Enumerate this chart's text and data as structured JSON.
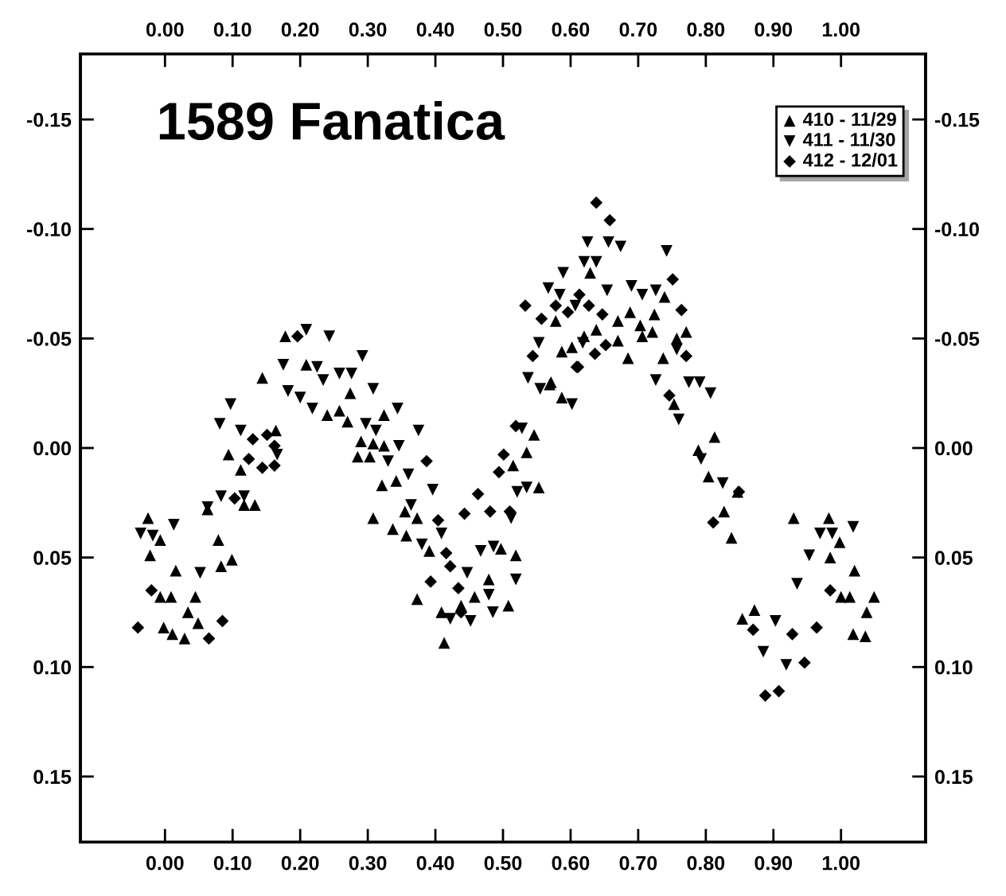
{
  "chart_data": {
    "type": "scatter",
    "title": "1589 Fanatica",
    "legend": "top right",
    "grid": false,
    "xlim": [
      -0.125,
      1.125
    ],
    "ylim": [
      0.18,
      -0.18
    ],
    "x2lim": [
      -0.125,
      1.125
    ],
    "y2lim": [
      0.18,
      -0.18
    ],
    "xticks": [
      {
        "value": 0,
        "label": "0.00"
      },
      {
        "value": 0.1,
        "label": "0.10"
      },
      {
        "value": 0.2,
        "label": "0.20"
      },
      {
        "value": 0.3,
        "label": "0.30"
      },
      {
        "value": 0.4,
        "label": "0.40"
      },
      {
        "value": 0.5,
        "label": "0.50"
      },
      {
        "value": 0.6,
        "label": "0.60"
      },
      {
        "value": 0.7,
        "label": "0.70"
      },
      {
        "value": 0.8,
        "label": "0.80"
      },
      {
        "value": 0.9,
        "label": "0.90"
      },
      {
        "value": 1,
        "label": "1.00"
      }
    ],
    "x2ticks": [
      {
        "value": 0,
        "label": "0.00"
      },
      {
        "value": 0.1,
        "label": "0.10"
      },
      {
        "value": 0.2,
        "label": "0.20"
      },
      {
        "value": 0.3,
        "label": "0.30"
      },
      {
        "value": 0.4,
        "label": "0.40"
      },
      {
        "value": 0.5,
        "label": "0.50"
      },
      {
        "value": 0.6,
        "label": "0.60"
      },
      {
        "value": 0.7,
        "label": "0.70"
      },
      {
        "value": 0.8,
        "label": "0.80"
      },
      {
        "value": 0.9,
        "label": "0.90"
      },
      {
        "value": 1,
        "label": "1.00"
      }
    ],
    "yticks": [
      {
        "value": -0.15,
        "label": "-0.15"
      },
      {
        "value": -0.1,
        "label": "-0.10"
      },
      {
        "value": -0.05,
        "label": "-0.05"
      },
      {
        "value": 0,
        "label": "0.00"
      },
      {
        "value": 0.05,
        "label": "0.05"
      },
      {
        "value": 0.1,
        "label": "0.10"
      },
      {
        "value": 0.15,
        "label": "0.15"
      }
    ],
    "y2ticks": [
      {
        "value": -0.15,
        "label": "-0.15"
      },
      {
        "value": -0.1,
        "label": "-0.10"
      },
      {
        "value": -0.05,
        "label": "-0.05"
      },
      {
        "value": 0,
        "label": "0.00"
      },
      {
        "value": 0.05,
        "label": "0.05"
      },
      {
        "value": 0.1,
        "label": "0.10"
      },
      {
        "value": 0.15,
        "label": "0.15"
      }
    ],
    "series": [
      {
        "name": "410 - 11/29",
        "color": "#000000",
        "marker": "triangle",
        "x": [
          -0.025,
          -0.007,
          -0.022,
          0.016,
          -0.007,
          0.009,
          0.045,
          0.034,
          -0.002,
          0.011,
          0.029,
          0.049,
          0.079,
          0.083,
          0.099,
          0.063,
          0.117,
          0.133,
          0.094,
          0.112,
          0.164,
          0.144,
          0.178,
          0.209,
          0.274,
          0.24,
          0.258,
          0.27,
          0.29,
          0.308,
          0.285,
          0.303,
          0.321,
          0.308,
          0.324,
          0.324,
          0.342,
          0.337,
          0.355,
          0.373,
          0.357,
          0.391,
          0.373,
          0.413,
          0.409,
          0.438,
          0.458,
          0.479,
          0.508,
          0.519,
          0.497,
          0.553,
          0.535,
          0.515,
          0.546,
          0.587,
          0.602,
          0.587,
          0.569,
          0.578,
          0.629,
          0.62,
          0.638,
          0.67,
          0.688,
          0.703,
          0.724,
          0.739,
          0.685,
          0.706,
          0.721,
          0.737,
          0.757,
          0.771,
          0.571,
          0.753,
          0.813,
          0.789,
          0.804,
          0.827,
          0.838,
          0.67,
          0.847,
          0.93,
          0.982,
          0.998,
          0.984,
          1.02,
          1.0,
          1.013,
          1.049,
          1.038,
          1.018,
          1.036,
          0.854,
          0.872
        ],
        "values": [
          0.032,
          0.042,
          0.049,
          0.056,
          0.068,
          0.068,
          0.068,
          0.075,
          0.082,
          0.085,
          0.087,
          0.08,
          0.042,
          0.054,
          0.051,
          0.028,
          0.026,
          0.026,
          0.003,
          0.01,
          -0.008,
          -0.032,
          -0.051,
          -0.038,
          -0.025,
          -0.015,
          -0.017,
          -0.012,
          -0.003,
          -0.002,
          0.004,
          0.004,
          0.017,
          0.032,
          -0.015,
          -0.001,
          0.015,
          0.037,
          0.029,
          0.032,
          0.04,
          0.047,
          0.069,
          0.089,
          0.075,
          0.072,
          0.068,
          0.06,
          0.072,
          0.049,
          0.046,
          0.018,
          0.002,
          0.008,
          -0.006,
          -0.044,
          -0.046,
          -0.023,
          -0.029,
          -0.058,
          -0.08,
          -0.051,
          -0.054,
          -0.058,
          -0.062,
          -0.056,
          -0.061,
          -0.069,
          -0.041,
          -0.051,
          -0.053,
          -0.041,
          -0.05,
          -0.053,
          -0.03,
          -0.02,
          -0.005,
          0.001,
          0.013,
          0.029,
          0.041,
          -0.049,
          0.02,
          0.032,
          0.032,
          0.043,
          0.05,
          0.056,
          0.068,
          0.068,
          0.068,
          0.075,
          0.085,
          0.086,
          0.078,
          0.074
        ]
      },
      {
        "name": "411 - 11/30",
        "color": "#000000",
        "marker": "triangle-down",
        "x": [
          -0.036,
          -0.018,
          0.013,
          0.052,
          0.063,
          0.083,
          0.117,
          0.097,
          0.081,
          0.112,
          0.166,
          0.175,
          0.209,
          0.243,
          0.225,
          0.234,
          0.258,
          0.276,
          0.292,
          0.308,
          0.182,
          0.2,
          0.218,
          0.297,
          0.312,
          0.344,
          0.346,
          0.33,
          0.375,
          0.36,
          0.396,
          0.364,
          0.38,
          0.409,
          0.447,
          0.467,
          0.486,
          0.519,
          0.479,
          0.485,
          0.452,
          0.422,
          0.521,
          0.535,
          0.512,
          0.537,
          0.555,
          0.602,
          0.553,
          0.528,
          0.625,
          0.656,
          0.674,
          0.62,
          0.638,
          0.742,
          0.589,
          0.567,
          0.584,
          0.607,
          0.654,
          0.69,
          0.706,
          0.726,
          0.618,
          0.757,
          0.726,
          0.775,
          0.791,
          0.807,
          0.76,
          0.793,
          0.825,
          0.969,
          0.987,
          1.018,
          0.953,
          0.935,
          0.903,
          0.885,
          0.919
        ],
        "values": [
          0.039,
          0.04,
          0.035,
          0.057,
          0.027,
          0.022,
          0.022,
          -0.02,
          -0.011,
          -0.008,
          0.003,
          -0.038,
          -0.054,
          -0.051,
          -0.037,
          -0.031,
          -0.034,
          -0.034,
          -0.042,
          -0.027,
          -0.026,
          -0.023,
          -0.018,
          -0.011,
          -0.008,
          -0.018,
          -0.001,
          0.006,
          -0.008,
          0.012,
          0.019,
          0.026,
          0.044,
          0.039,
          0.057,
          0.047,
          0.045,
          0.06,
          0.067,
          0.075,
          0.079,
          0.078,
          0.02,
          0.018,
          0.032,
          -0.032,
          -0.027,
          -0.02,
          -0.048,
          -0.009,
          -0.094,
          -0.094,
          -0.092,
          -0.085,
          -0.085,
          -0.09,
          -0.08,
          -0.073,
          -0.07,
          -0.065,
          -0.072,
          -0.074,
          -0.07,
          -0.072,
          -0.048,
          -0.045,
          -0.031,
          -0.03,
          -0.03,
          -0.025,
          -0.013,
          0.005,
          0.016,
          0.039,
          0.039,
          0.036,
          0.049,
          0.062,
          0.079,
          0.093,
          0.099
        ]
      },
      {
        "name": "412 - 12/01",
        "color": "#000000",
        "marker": "diamond",
        "x": [
          -0.04,
          -0.02,
          0.065,
          0.085,
          0.103,
          0.124,
          0.144,
          0.162,
          0.151,
          0.13,
          0.162,
          0.196,
          0.387,
          0.404,
          0.416,
          0.422,
          0.434,
          0.393,
          0.463,
          0.443,
          0.481,
          0.51,
          0.501,
          0.494,
          0.519,
          0.539,
          0.557,
          0.611,
          0.438,
          0.638,
          0.658,
          0.751,
          0.764,
          0.771,
          0.533,
          0.557,
          0.578,
          0.596,
          0.627,
          0.647,
          0.609,
          0.636,
          0.652,
          0.544,
          0.746,
          0.811,
          0.849,
          0.613,
          0.984,
          0.87,
          0.928,
          0.964,
          0.946,
          0.908,
          0.888
        ],
        "values": [
          0.082,
          0.065,
          0.087,
          0.079,
          0.023,
          0.005,
          0.009,
          0.008,
          -0.006,
          -0.004,
          -0.001,
          -0.051,
          0.006,
          0.033,
          0.048,
          0.054,
          0.064,
          0.061,
          0.021,
          0.03,
          0.029,
          0.029,
          0.003,
          0.011,
          -0.01,
          null,
          null,
          -0.037,
          0.075,
          -0.112,
          -0.104,
          -0.077,
          -0.063,
          -0.042,
          -0.065,
          -0.059,
          -0.065,
          -0.062,
          -0.065,
          -0.061,
          -0.037,
          -0.043,
          -0.047,
          -0.042,
          -0.024,
          0.034,
          0.02,
          -0.07,
          0.065,
          0.083,
          0.085,
          0.082,
          0.098,
          0.111,
          0.113
        ]
      }
    ]
  }
}
